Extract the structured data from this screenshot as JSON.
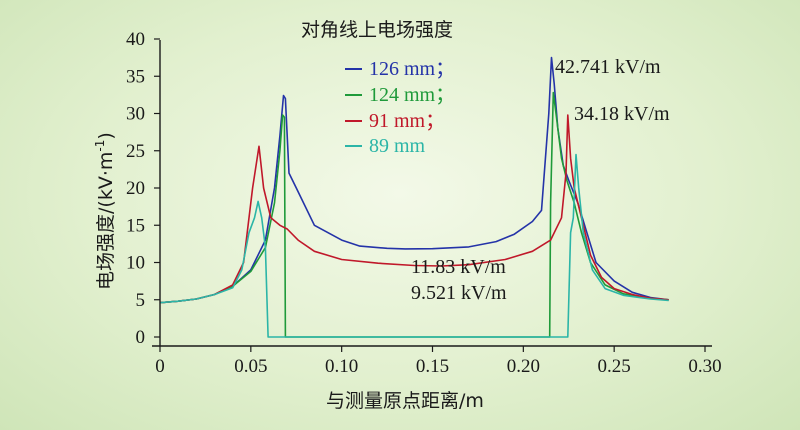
{
  "chart_data": {
    "type": "line",
    "title": "对角线上电场强度",
    "xlabel": "与测量原点距离/m",
    "ylabel_parts": [
      "电场强度/(kV·m",
      "-1",
      ")"
    ],
    "xlim": [
      0,
      0.3
    ],
    "ylim": [
      0,
      40
    ],
    "xticks": [
      "0",
      "0.05",
      "0.10",
      "0.15",
      "0.20",
      "0.25",
      "0.30"
    ],
    "xtick_values": [
      0,
      0.05,
      0.1,
      0.15,
      0.2,
      0.25,
      0.3
    ],
    "yticks": [
      "0",
      "5",
      "10",
      "15",
      "20",
      "25",
      "30",
      "35",
      "40"
    ],
    "ytick_values": [
      0,
      5,
      10,
      15,
      20,
      25,
      30,
      35,
      40
    ],
    "legend": "top-center",
    "series": [
      {
        "name": "126 mm；",
        "color": "#2433a8",
        "points": [
          [
            0,
            4.6
          ],
          [
            0.01,
            4.8
          ],
          [
            0.02,
            5.1
          ],
          [
            0.03,
            5.7
          ],
          [
            0.04,
            6.8
          ],
          [
            0.05,
            9.0
          ],
          [
            0.058,
            13
          ],
          [
            0.063,
            20
          ],
          [
            0.066,
            27
          ],
          [
            0.068,
            32.4
          ],
          [
            0.069,
            32.0
          ],
          [
            0.071,
            22
          ],
          [
            0.075,
            20
          ],
          [
            0.085,
            15
          ],
          [
            0.1,
            13
          ],
          [
            0.11,
            12.2
          ],
          [
            0.125,
            11.9
          ],
          [
            0.135,
            11.83
          ],
          [
            0.15,
            11.85
          ],
          [
            0.17,
            12.1
          ],
          [
            0.185,
            12.8
          ],
          [
            0.195,
            13.8
          ],
          [
            0.205,
            15.5
          ],
          [
            0.21,
            17.0
          ],
          [
            0.214,
            30
          ],
          [
            0.2155,
            37.5
          ],
          [
            0.217,
            34
          ],
          [
            0.219,
            28
          ],
          [
            0.222,
            23
          ],
          [
            0.225,
            21
          ],
          [
            0.23,
            18
          ],
          [
            0.235,
            14
          ],
          [
            0.24,
            10
          ],
          [
            0.25,
            7.5
          ],
          [
            0.26,
            6.0
          ],
          [
            0.27,
            5.3
          ],
          [
            0.28,
            5.0
          ]
        ]
      },
      {
        "name": "124 mm；",
        "color": "#1f9a3a",
        "points": [
          [
            0,
            4.6
          ],
          [
            0.01,
            4.8
          ],
          [
            0.02,
            5.1
          ],
          [
            0.03,
            5.7
          ],
          [
            0.04,
            6.8
          ],
          [
            0.05,
            8.8
          ],
          [
            0.058,
            12
          ],
          [
            0.063,
            18
          ],
          [
            0.066,
            25
          ],
          [
            0.0675,
            29.8
          ],
          [
            0.0685,
            29.5
          ],
          [
            0.069,
            0
          ],
          [
            0.1,
            0
          ],
          [
            0.15,
            0
          ],
          [
            0.2,
            0
          ],
          [
            0.2145,
            0
          ],
          [
            0.215,
            18
          ],
          [
            0.2165,
            32.8
          ],
          [
            0.218,
            30
          ],
          [
            0.221,
            24
          ],
          [
            0.224,
            21
          ],
          [
            0.228,
            18
          ],
          [
            0.232,
            14
          ],
          [
            0.237,
            10
          ],
          [
            0.245,
            7
          ],
          [
            0.255,
            5.8
          ],
          [
            0.27,
            5.2
          ],
          [
            0.28,
            5.0
          ]
        ]
      },
      {
        "name": "91 mm；",
        "color": "#c0182a",
        "points": [
          [
            0,
            4.6
          ],
          [
            0.01,
            4.8
          ],
          [
            0.02,
            5.1
          ],
          [
            0.03,
            5.7
          ],
          [
            0.04,
            7.0
          ],
          [
            0.046,
            10
          ],
          [
            0.051,
            20
          ],
          [
            0.0545,
            25.6
          ],
          [
            0.057,
            20
          ],
          [
            0.061,
            16
          ],
          [
            0.066,
            15
          ],
          [
            0.07,
            14.5
          ],
          [
            0.076,
            13
          ],
          [
            0.085,
            11.5
          ],
          [
            0.1,
            10.4
          ],
          [
            0.12,
            9.9
          ],
          [
            0.14,
            9.6
          ],
          [
            0.155,
            9.53
          ],
          [
            0.17,
            9.7
          ],
          [
            0.19,
            10.4
          ],
          [
            0.205,
            11.5
          ],
          [
            0.215,
            13
          ],
          [
            0.221,
            16
          ],
          [
            0.2235,
            22
          ],
          [
            0.2245,
            29.8
          ],
          [
            0.226,
            24
          ],
          [
            0.228,
            20
          ],
          [
            0.232,
            16
          ],
          [
            0.237,
            11
          ],
          [
            0.243,
            8
          ],
          [
            0.25,
            6.5
          ],
          [
            0.26,
            5.7
          ],
          [
            0.27,
            5.2
          ],
          [
            0.28,
            5.0
          ]
        ]
      },
      {
        "name": "89 mm",
        "color": "#2bb5a7",
        "points": [
          [
            0,
            4.6
          ],
          [
            0.01,
            4.8
          ],
          [
            0.02,
            5.1
          ],
          [
            0.03,
            5.7
          ],
          [
            0.04,
            6.6
          ],
          [
            0.045,
            9
          ],
          [
            0.049,
            14
          ],
          [
            0.052,
            16
          ],
          [
            0.054,
            18.2
          ],
          [
            0.056,
            16
          ],
          [
            0.058,
            12
          ],
          [
            0.0595,
            0
          ],
          [
            0.1,
            0
          ],
          [
            0.15,
            0
          ],
          [
            0.2,
            0
          ],
          [
            0.2245,
            0
          ],
          [
            0.226,
            14
          ],
          [
            0.2275,
            16
          ],
          [
            0.229,
            24.5
          ],
          [
            0.2305,
            20
          ],
          [
            0.233,
            14
          ],
          [
            0.238,
            9
          ],
          [
            0.245,
            6.5
          ],
          [
            0.255,
            5.6
          ],
          [
            0.27,
            5.1
          ],
          [
            0.28,
            4.9
          ]
        ]
      }
    ],
    "annotations": [
      "42.741 kV/m",
      "34.18 kV/m",
      "11.83 kV/m",
      "9.521 kV/m"
    ]
  }
}
